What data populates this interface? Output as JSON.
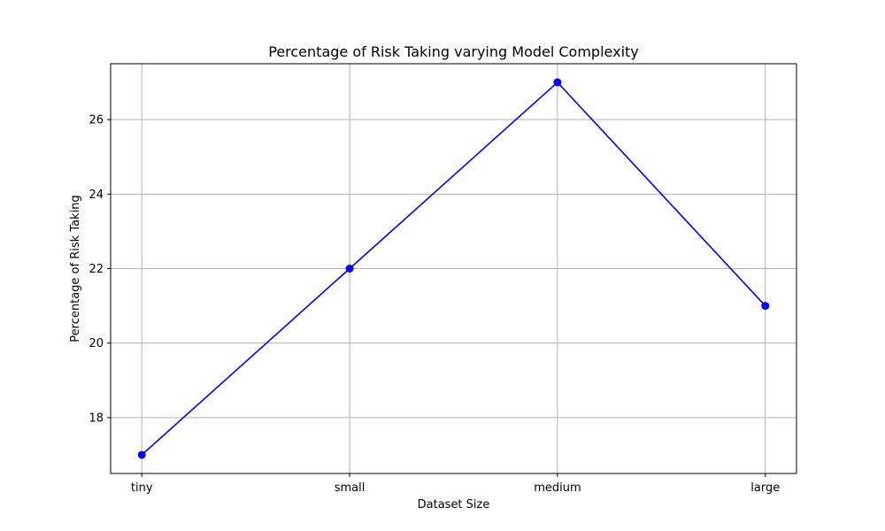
{
  "chart_data": {
    "type": "line",
    "title": "Percentage of Risk Taking varying Model Complexity",
    "xlabel": "Dataset Size",
    "ylabel": "Percentage of Risk Taking",
    "categories": [
      "tiny",
      "small",
      "medium",
      "large"
    ],
    "series": [
      {
        "values": [
          17,
          22,
          27,
          21
        ],
        "color": "#0000ff",
        "marker": "circle"
      }
    ],
    "ylim": [
      16.5,
      27.5
    ],
    "yticks": [
      18,
      20,
      22,
      24,
      26
    ],
    "grid": true,
    "colors": {
      "grid": "#b0b0b0",
      "axes": "#000000",
      "line": "#0000ff"
    }
  }
}
